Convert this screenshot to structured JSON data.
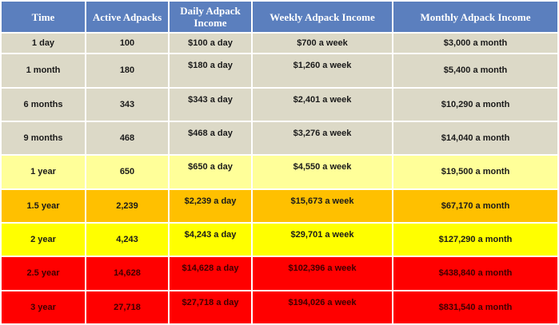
{
  "table": {
    "headers": [
      "Time",
      "Active Adpacks",
      "Daily Adpack Income",
      "Weekly Adpack Income",
      "Monthly Adpack Income"
    ],
    "rows": [
      {
        "time": "1 day",
        "adpacks": "100",
        "daily": "$100 a day",
        "weekly": "$700 a week",
        "monthly": "$3,000 a month",
        "color": "#dcd9c7"
      },
      {
        "time": "1 month",
        "adpacks": "180",
        "daily": "$180 a day",
        "weekly": "$1,260 a week",
        "monthly": "$5,400 a month",
        "color": "#dcd9c7"
      },
      {
        "time": "6 months",
        "adpacks": "343",
        "daily": "$343 a day",
        "weekly": "$2,401 a week",
        "monthly": "$10,290  a month",
        "color": "#dcd9c7"
      },
      {
        "time": "9 months",
        "adpacks": "468",
        "daily": "$468 a day",
        "weekly": "$3,276 a week",
        "monthly": "$14,040  a month",
        "color": "#dcd9c7"
      },
      {
        "time": "1 year",
        "adpacks": "650",
        "daily": "$650 a day",
        "weekly": "$4,550 a week",
        "monthly": "$19,500  a month",
        "color": "#ffff99"
      },
      {
        "time": "1.5 year",
        "adpacks": "2,239",
        "daily": "$2,239 a day",
        "weekly": "$15,673 a week",
        "monthly": "$67,170  a month",
        "color": "#ffc000"
      },
      {
        "time": "2 year",
        "adpacks": "4,243",
        "daily": "$4,243 a day",
        "weekly": "$29,701 a week",
        "monthly": "$127,290  a month",
        "color": "#ffff00"
      },
      {
        "time": "2.5 year",
        "adpacks": "14,628",
        "daily": "$14,628 a day",
        "weekly": "$102,396 a week",
        "monthly": "$438,840  a month",
        "color": "#ff0000"
      },
      {
        "time": "3 year",
        "adpacks": "27,718",
        "daily": "$27,718 a day",
        "weekly": "$194,026 a week",
        "monthly": "$831,540  a month",
        "color": "#ff0000"
      }
    ]
  },
  "colors": {
    "header": "#5b7fbe",
    "grey": "#dcd9c7",
    "light_yellow": "#ffff99",
    "orange": "#ffc000",
    "yellow": "#ffff00",
    "red": "#ff0000"
  }
}
